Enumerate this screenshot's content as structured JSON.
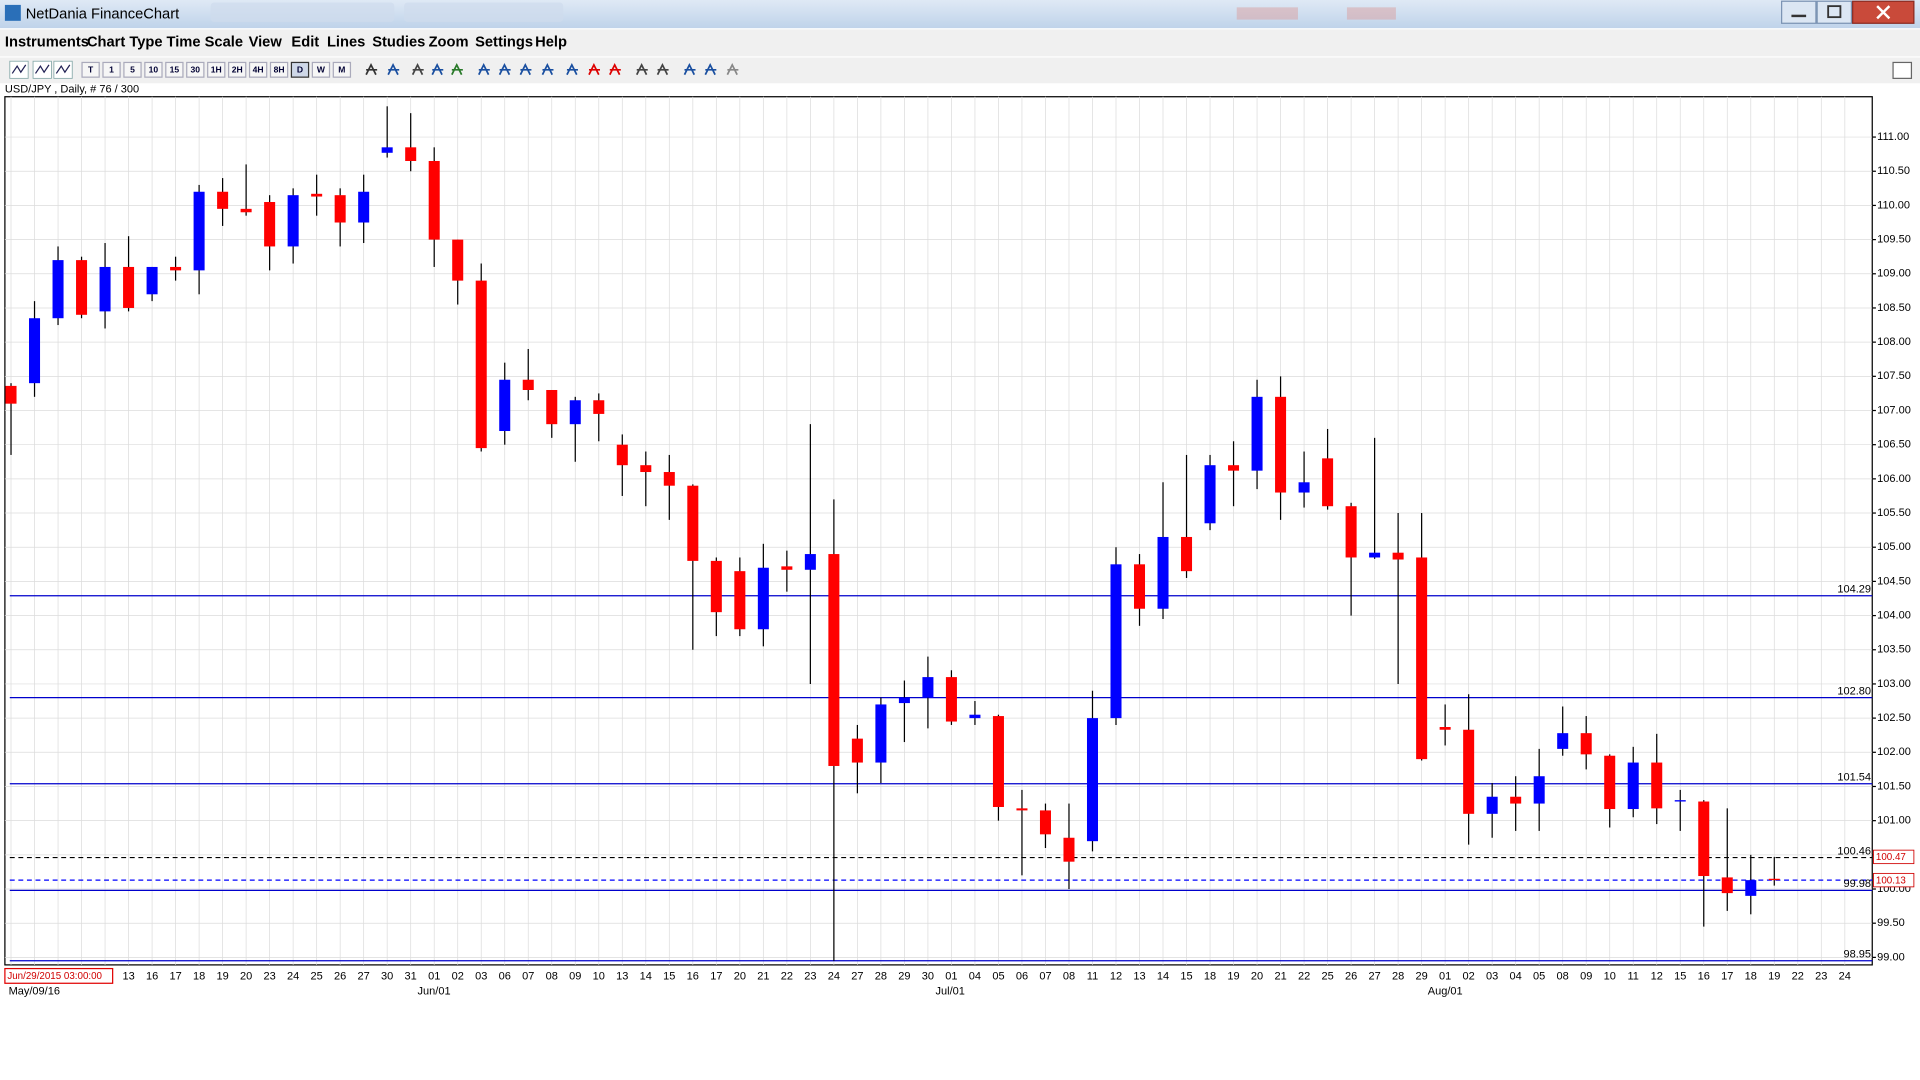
{
  "window": {
    "title": "NetDania FinanceChart"
  },
  "menu": [
    "Instruments",
    "Chart Type",
    "Time Scale",
    "View",
    "Edit",
    "Lines",
    "Studies",
    "Zoom",
    "Settings",
    "Help"
  ],
  "toolbar": {
    "timeframes": [
      "T",
      "1",
      "5",
      "10",
      "15",
      "30",
      "1H",
      "2H",
      "4H",
      "8H",
      "D",
      "W",
      "M"
    ]
  },
  "chart_data": {
    "type": "candlestick",
    "title": "USD/JPY , Daily, # 76 / 300",
    "cursor_time": "Jun/29/2015 03:00:00",
    "periods": [
      "May/09/16",
      "Jun/01",
      "Jul/01",
      "Aug/01"
    ],
    "categories": [
      null,
      null,
      null,
      null,
      null,
      "13",
      "16",
      "17",
      "18",
      "19",
      "20",
      "23",
      "24",
      "25",
      "26",
      "27",
      "30",
      "31",
      "01",
      "02",
      "03",
      "06",
      "07",
      "08",
      "09",
      "10",
      "13",
      "14",
      "15",
      "16",
      "17",
      "20",
      "21",
      "22",
      "23",
      "24",
      "27",
      "28",
      "29",
      "30",
      "01",
      "04",
      "05",
      "06",
      "07",
      "08",
      "11",
      "12",
      "13",
      "14",
      "15",
      "18",
      "19",
      "20",
      "21",
      "22",
      "25",
      "26",
      "27",
      "28",
      "29",
      "01",
      "02",
      "03",
      "04",
      "05",
      "08",
      "09",
      "10",
      "11",
      "12",
      "15",
      "16",
      "17",
      "18",
      "19",
      "22",
      "23",
      "24"
    ],
    "open": [
      107.36,
      107.4,
      108.35,
      109.2,
      108.45,
      109.1,
      108.7,
      109.1,
      109.05,
      110.2,
      109.95,
      110.05,
      109.4,
      110.17,
      110.15,
      109.75,
      110.77,
      110.85,
      110.65,
      109.5,
      108.9,
      106.7,
      107.45,
      107.3,
      106.8,
      107.15,
      106.5,
      106.2,
      106.1,
      105.9,
      104.8,
      104.65,
      103.8,
      104.72,
      104.67,
      104.9,
      102.2,
      101.85,
      102.72,
      102.8,
      103.1,
      102.5,
      102.53,
      101.18,
      101.15,
      100.75,
      100.7,
      102.5,
      104.75,
      104.1,
      105.15,
      105.35,
      106.2,
      106.12,
      107.2,
      105.8,
      106.3,
      105.6,
      104.85,
      104.92,
      104.85,
      102.37,
      102.33,
      101.1,
      101.35,
      101.25,
      102.05,
      102.28,
      101.95,
      101.17,
      101.85,
      101.28,
      101.28,
      100.17,
      99.9,
      100.15,
      null,
      null,
      null
    ],
    "high": [
      107.4,
      108.6,
      109.4,
      109.25,
      109.45,
      109.55,
      109.1,
      109.25,
      110.3,
      110.4,
      110.6,
      110.15,
      110.25,
      110.45,
      110.25,
      110.45,
      111.45,
      111.35,
      110.85,
      109.5,
      109.15,
      107.7,
      107.9,
      107.3,
      107.2,
      107.25,
      106.65,
      106.4,
      106.35,
      105.92,
      104.85,
      104.85,
      105.05,
      104.95,
      106.8,
      105.7,
      102.4,
      102.8,
      103.05,
      103.4,
      103.2,
      102.75,
      102.55,
      101.45,
      101.25,
      101.25,
      102.9,
      105.0,
      104.9,
      105.95,
      106.35,
      106.35,
      106.55,
      107.45,
      107.5,
      106.4,
      106.73,
      105.65,
      106.6,
      105.5,
      105.5,
      102.7,
      102.85,
      101.55,
      101.65,
      102.05,
      102.67,
      102.53,
      101.97,
      102.08,
      102.27,
      101.45,
      101.3,
      101.18,
      100.5,
      100.47,
      null,
      null,
      null
    ],
    "low": [
      106.35,
      107.2,
      108.25,
      108.35,
      108.2,
      108.45,
      108.6,
      108.9,
      108.7,
      109.7,
      109.85,
      109.05,
      109.15,
      109.85,
      109.4,
      109.45,
      110.7,
      110.5,
      109.1,
      108.55,
      106.4,
      106.5,
      107.15,
      106.6,
      106.25,
      106.55,
      105.75,
      105.6,
      105.4,
      103.5,
      103.7,
      103.7,
      103.55,
      104.35,
      103.0,
      98.95,
      101.4,
      101.55,
      102.15,
      102.35,
      102.4,
      102.4,
      101.0,
      100.2,
      100.6,
      100.0,
      100.55,
      102.4,
      103.85,
      103.95,
      104.55,
      105.25,
      105.6,
      105.85,
      105.4,
      105.58,
      105.55,
      104.0,
      104.83,
      103.0,
      101.88,
      102.1,
      100.65,
      100.75,
      100.85,
      100.85,
      101.95,
      101.75,
      100.9,
      101.05,
      100.95,
      100.85,
      99.45,
      99.68,
      99.63,
      100.05,
      null,
      null,
      null
    ],
    "close": [
      107.1,
      108.35,
      109.2,
      108.4,
      109.1,
      108.5,
      109.1,
      109.05,
      110.2,
      109.95,
      109.9,
      109.4,
      110.15,
      110.13,
      109.75,
      110.2,
      110.85,
      110.65,
      109.5,
      108.9,
      106.45,
      107.45,
      107.3,
      106.8,
      107.15,
      106.95,
      106.2,
      106.1,
      105.9,
      104.8,
      104.05,
      103.8,
      104.7,
      104.67,
      104.9,
      101.8,
      101.85,
      102.7,
      102.8,
      103.1,
      102.45,
      102.55,
      101.2,
      101.15,
      100.8,
      100.4,
      102.5,
      104.75,
      104.1,
      105.15,
      104.65,
      106.2,
      106.12,
      107.2,
      105.8,
      105.95,
      105.6,
      104.85,
      104.92,
      104.82,
      101.9,
      102.33,
      101.1,
      101.35,
      101.25,
      101.65,
      102.28,
      101.97,
      101.17,
      101.85,
      101.18,
      101.3,
      100.19,
      99.94,
      100.13,
      100.13,
      null,
      null,
      null
    ],
    "up_color": "#0000ff",
    "down_color": "#ff0000",
    "ylim": [
      98.89,
      111.59
    ],
    "yticks": [
      {
        "value": 99,
        "label": "99.00"
      },
      {
        "value": 99.5,
        "label": "99.50"
      },
      {
        "value": 100,
        "label": "100.00"
      },
      {
        "value": 100.5,
        "label": "100.50"
      },
      {
        "value": 101,
        "label": "101.00"
      },
      {
        "value": 101.5,
        "label": "101.50"
      },
      {
        "value": 102,
        "label": "102.00"
      },
      {
        "value": 102.5,
        "label": "102.50"
      },
      {
        "value": 103,
        "label": "103.00"
      },
      {
        "value": 103.5,
        "label": "103.50"
      },
      {
        "value": 104,
        "label": "104.00"
      },
      {
        "value": 104.5,
        "label": "104.50"
      },
      {
        "value": 105,
        "label": "105.00"
      },
      {
        "value": 105.5,
        "label": "105.50"
      },
      {
        "value": 106,
        "label": "106.00"
      },
      {
        "value": 106.5,
        "label": "106.50"
      },
      {
        "value": 107,
        "label": "107.00"
      },
      {
        "value": 107.5,
        "label": "107.50"
      },
      {
        "value": 108,
        "label": "108.00"
      },
      {
        "value": 108.5,
        "label": "108.50"
      },
      {
        "value": 109,
        "label": "109.00"
      },
      {
        "value": 109.5,
        "label": "109.50"
      },
      {
        "value": 110,
        "label": "110.00"
      },
      {
        "value": 110.5,
        "label": "110.50"
      },
      {
        "value": 111,
        "label": "111.00"
      }
    ],
    "grid": true,
    "levels": [
      {
        "value": 104.29,
        "label": "104.29",
        "color": "#0000cc",
        "dashed": false
      },
      {
        "value": 102.8,
        "label": "102.80",
        "color": "#0000cc",
        "dashed": false
      },
      {
        "value": 101.54,
        "label": "101.54",
        "color": "#0000cc",
        "dashed": false
      },
      {
        "value": 100.46,
        "label": "100.46",
        "color": "#000000",
        "dashed": true
      },
      {
        "value": 100.13,
        "color": "#0000ff",
        "dashed": true
      },
      {
        "value": 99.98,
        "label": "99.98",
        "color": "#0000cc",
        "dashed": false
      },
      {
        "value": 98.95,
        "label": "98.95",
        "color": "#0000cc",
        "dashed": false
      }
    ],
    "price_boxes": [
      {
        "value": 100.47,
        "label": "100.47"
      },
      {
        "value": 100.13,
        "label": "100.13"
      }
    ]
  }
}
